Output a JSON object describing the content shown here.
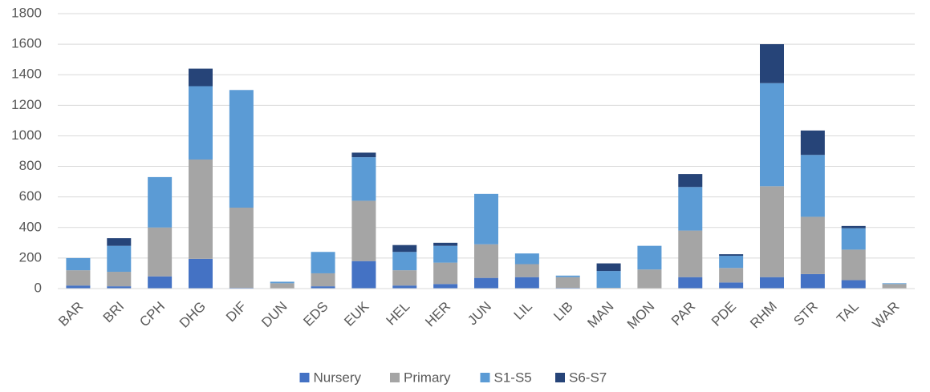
{
  "chart_data": {
    "type": "stacked_bar",
    "categories": [
      "BAR",
      "BRI",
      "CPH",
      "DHG",
      "DIF",
      "DUN",
      "EDS",
      "EUK",
      "HEL",
      "HER",
      "JUN",
      "LIL",
      "LIB",
      "MAN",
      "MON",
      "PAR",
      "PDE",
      "RHM",
      "STR",
      "TAL",
      "WAR"
    ],
    "series": [
      {
        "name": "Nursery",
        "color": "#4472c4",
        "values": [
          20,
          15,
          80,
          195,
          5,
          0,
          15,
          180,
          20,
          30,
          70,
          75,
          5,
          0,
          0,
          75,
          40,
          75,
          95,
          55,
          0
        ]
      },
      {
        "name": "Primary",
        "color": "#a5a5a5",
        "values": [
          100,
          95,
          320,
          650,
          525,
          35,
          85,
          395,
          100,
          140,
          220,
          85,
          70,
          5,
          125,
          305,
          95,
          595,
          375,
          200,
          30
        ]
      },
      {
        "name": "S1-S5",
        "color": "#5b9bd5",
        "values": [
          80,
          170,
          330,
          480,
          770,
          10,
          140,
          285,
          120,
          110,
          330,
          70,
          10,
          110,
          155,
          285,
          80,
          675,
          405,
          140,
          5
        ]
      },
      {
        "name": "S6-S7",
        "color": "#264478",
        "values": [
          0,
          50,
          0,
          115,
          0,
          0,
          0,
          30,
          45,
          20,
          0,
          0,
          0,
          50,
          0,
          85,
          10,
          255,
          160,
          15,
          0
        ]
      }
    ],
    "ylim": [
      0,
      1800
    ],
    "yticks": [
      0,
      200,
      400,
      600,
      800,
      1000,
      1200,
      1400,
      1600,
      1800
    ],
    "grid": true,
    "legend": "bottom"
  }
}
